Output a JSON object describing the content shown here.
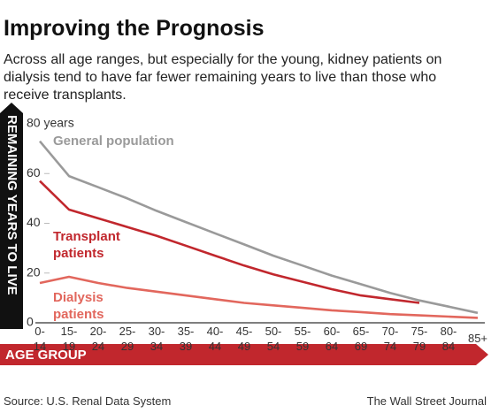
{
  "chart_data": {
    "type": "line",
    "title": "Improving the Prognosis",
    "subtitle": "Across all age ranges, but especially for the young, kidney patients on dialysis tend to have far fewer remaining years to live than those who receive transplants.",
    "y_label": "REMAINING YEARS TO LIVE",
    "x_label": "AGE GROUP",
    "source": "Source: U.S. Renal Data System",
    "credit": "The Wall Street Journal",
    "categories": [
      "0-14",
      "15-19",
      "20-24",
      "25-29",
      "30-34",
      "35-39",
      "40-44",
      "45-49",
      "50-54",
      "55-59",
      "60-64",
      "65-69",
      "70-74",
      "75-79",
      "80-84",
      "85+"
    ],
    "series": [
      {
        "name": "General population",
        "color": "#9a9a9a",
        "values": [
          73,
          59,
          54.5,
          50,
          45,
          40.5,
          36,
          31.5,
          27,
          23,
          19,
          15.5,
          12,
          9,
          6.5,
          4
        ]
      },
      {
        "name": "Transplant patients",
        "color": "#c1272d",
        "values": [
          57,
          45.5,
          42,
          38.5,
          35,
          31,
          27,
          23,
          19.5,
          16.5,
          13.5,
          11,
          9.5,
          8,
          null,
          null
        ]
      },
      {
        "name": "Dialysis patients",
        "color": "#e2675d",
        "values": [
          16,
          18.5,
          16,
          14,
          12.5,
          11,
          9.5,
          8,
          7,
          6,
          5,
          4.3,
          3.5,
          3,
          2.5,
          2
        ]
      }
    ],
    "ylim": [
      0,
      80
    ],
    "yticks": [
      0,
      20,
      40,
      60,
      {
        "value": 80,
        "label": "80 years"
      }
    ]
  }
}
